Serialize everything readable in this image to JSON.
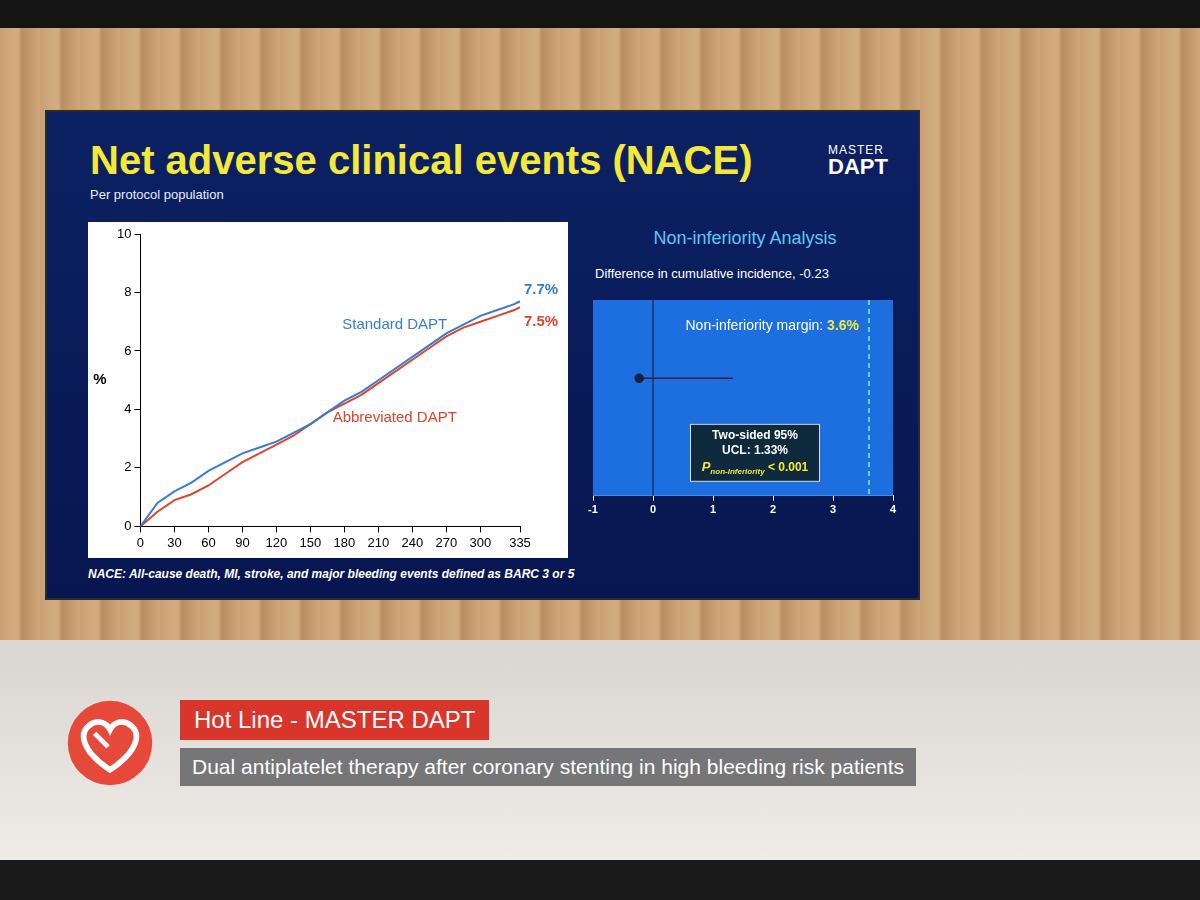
{
  "slide": {
    "title": "Net adverse clinical events (NACE)",
    "subtitle": "Per protocol population",
    "logo": [
      "MASTER",
      "DAPT"
    ],
    "footnote": "NACE: All-cause death, MI, stroke, and major bleeding events defined as BARC 3 or 5"
  },
  "banner": {
    "title": "Hot Line - MASTER DAPT",
    "subtitle": "Dual antiplatelet therapy after coronary stenting in high bleeding risk patients"
  },
  "chart_data": [
    {
      "type": "line",
      "x": [
        0,
        15,
        30,
        45,
        60,
        75,
        90,
        105,
        120,
        135,
        150,
        165,
        180,
        195,
        210,
        225,
        240,
        255,
        270,
        285,
        300,
        315,
        330,
        335
      ],
      "series": [
        {
          "name": "Standard DAPT",
          "color": "#3a7bd5",
          "values": [
            0,
            0.8,
            1.2,
            1.5,
            1.9,
            2.2,
            2.5,
            2.7,
            2.9,
            3.2,
            3.5,
            3.9,
            4.3,
            4.6,
            5.0,
            5.4,
            5.8,
            6.2,
            6.6,
            6.9,
            7.2,
            7.4,
            7.6,
            7.7
          ],
          "value_labels": [
            null,
            null,
            null,
            null,
            null,
            null,
            null,
            null,
            null,
            null,
            null,
            null,
            null,
            null,
            null,
            null,
            null,
            null,
            null,
            null,
            null,
            null,
            null,
            "7.7%"
          ]
        },
        {
          "name": "Abbreviated DAPT",
          "color": "#e0452b",
          "values": [
            0,
            0.5,
            0.9,
            1.1,
            1.4,
            1.8,
            2.2,
            2.5,
            2.8,
            3.1,
            3.5,
            3.9,
            4.2,
            4.5,
            4.9,
            5.3,
            5.7,
            6.1,
            6.5,
            6.8,
            7.0,
            7.2,
            7.4,
            7.5
          ],
          "value_labels": [
            null,
            null,
            null,
            null,
            null,
            null,
            null,
            null,
            null,
            null,
            null,
            null,
            null,
            null,
            null,
            null,
            null,
            null,
            null,
            null,
            null,
            null,
            null,
            "7.5%"
          ]
        }
      ],
      "xlim": [
        0,
        335
      ],
      "xticks": [
        0,
        30,
        60,
        90,
        120,
        150,
        180,
        210,
        240,
        270,
        300,
        335
      ],
      "ylim": [
        0,
        10
      ],
      "yticks": [
        0,
        2,
        4,
        6,
        8,
        10
      ],
      "y_label": "%",
      "grid": false
    },
    {
      "type": "forest",
      "title": "Non-inferiority Analysis",
      "subtitle": "Difference in cumulative incidence, -0.23",
      "estimate": -0.23,
      "ucl": 1.33,
      "ci_label": "Two-sided 95%",
      "ucl_label": "UCL: 1.33%",
      "margin": 3.6,
      "margin_label": "Non-inferiority margin:",
      "margin_value_label": "3.6%",
      "p_label": "P",
      "p_subscript": "non-inferiority",
      "p_value_label": "< 0.001",
      "color": "#14233c",
      "xlim": [
        -1,
        4
      ],
      "xticks": [
        -1,
        0,
        1,
        2,
        3,
        4
      ]
    }
  ]
}
